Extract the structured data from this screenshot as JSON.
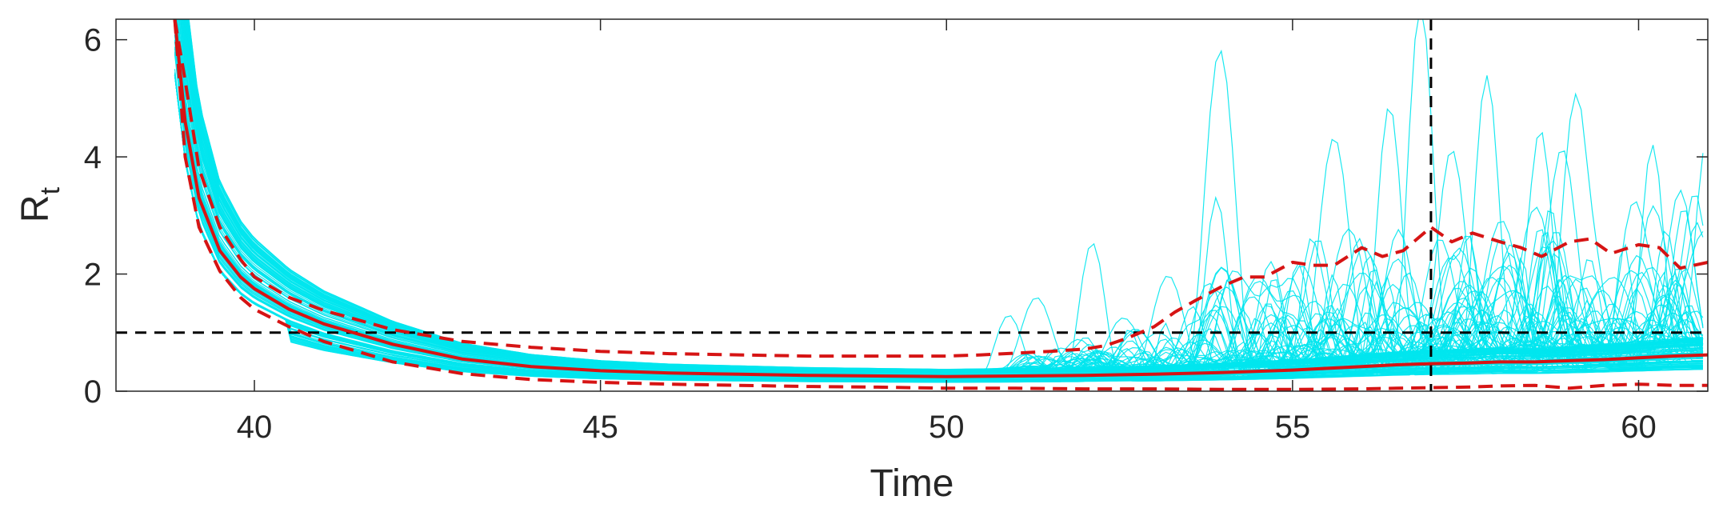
{
  "chart_data": {
    "type": "line",
    "title": "",
    "xlabel": "Time",
    "ylabel_main": "R",
    "ylabel_sub": "t",
    "xlim": [
      38,
      61
    ],
    "ylim": [
      0,
      6.35
    ],
    "xticks": [
      40,
      45,
      50,
      55,
      60
    ],
    "yticks": [
      0,
      2,
      4,
      6
    ],
    "grid": false,
    "reference_lines": {
      "horizontal_y": 1,
      "vertical_x": 57
    },
    "colors": {
      "samples": "#00e5ee",
      "estimate": "#d61414",
      "reference": "#000000",
      "axes": "#262626"
    },
    "ensemble": {
      "count": 120,
      "description_values": "sample trajectories, values in data units",
      "x_start": 38.85,
      "x_end": 61,
      "peak_samples": [
        {
          "x": 53.95,
          "y": 5.85
        },
        {
          "x": 56.85,
          "y": 6.35
        },
        {
          "x": 57.8,
          "y": 5.2
        },
        {
          "x": 59.1,
          "y": 5.1
        },
        {
          "x": 56.4,
          "y": 4.9
        },
        {
          "x": 52.1,
          "y": 2.7
        },
        {
          "x": 53.9,
          "y": 3.45
        },
        {
          "x": 55.6,
          "y": 4.45
        },
        {
          "x": 58.6,
          "y": 4.2
        },
        {
          "x": 60.2,
          "y": 4.0
        },
        {
          "x": 61.0,
          "y": 4.15
        },
        {
          "x": 51.3,
          "y": 1.65
        },
        {
          "x": 50.9,
          "y": 1.5
        },
        {
          "x": 53.2,
          "y": 2.05
        },
        {
          "x": 57.3,
          "y": 3.9
        },
        {
          "x": 58.9,
          "y": 3.6
        },
        {
          "x": 60.6,
          "y": 3.1
        }
      ]
    },
    "series": [
      {
        "role": "median",
        "style": "solid",
        "x": [
          38.85,
          39.0,
          39.2,
          39.5,
          39.8,
          40.0,
          40.5,
          41.0,
          42.0,
          43.0,
          44.0,
          45.0,
          46.0,
          47.0,
          48.0,
          49.0,
          50.0,
          51.0,
          52.0,
          53.0,
          54.0,
          55.0,
          56.0,
          56.5,
          57.0,
          57.5,
          58.0,
          58.5,
          59.0,
          59.5,
          60.0,
          60.5,
          61.0
        ],
        "y": [
          6.35,
          4.6,
          3.3,
          2.4,
          1.95,
          1.75,
          1.4,
          1.15,
          0.8,
          0.55,
          0.42,
          0.35,
          0.31,
          0.29,
          0.27,
          0.26,
          0.25,
          0.26,
          0.27,
          0.29,
          0.32,
          0.36,
          0.42,
          0.45,
          0.47,
          0.48,
          0.5,
          0.5,
          0.52,
          0.54,
          0.57,
          0.6,
          0.62
        ]
      },
      {
        "role": "upper-bound",
        "style": "dashed",
        "x": [
          38.85,
          39.0,
          39.2,
          39.5,
          39.8,
          40.0,
          40.5,
          41.0,
          42.0,
          43.0,
          44.0,
          45.0,
          46.0,
          47.0,
          48.0,
          49.0,
          50.0,
          50.5,
          51.0,
          51.5,
          52.0,
          52.3,
          52.6,
          53.0,
          53.3,
          53.6,
          54.0,
          54.3,
          54.6,
          55.0,
          55.3,
          55.6,
          56.0,
          56.3,
          56.6,
          57.0,
          57.3,
          57.6,
          58.0,
          58.3,
          58.6,
          59.0,
          59.3,
          59.6,
          60.0,
          60.3,
          60.6,
          61.0
        ],
        "y": [
          6.35,
          5.3,
          3.8,
          2.8,
          2.25,
          1.95,
          1.6,
          1.38,
          1.05,
          0.85,
          0.75,
          0.68,
          0.64,
          0.62,
          0.6,
          0.6,
          0.6,
          0.62,
          0.65,
          0.68,
          0.72,
          0.78,
          0.9,
          1.1,
          1.35,
          1.55,
          1.8,
          1.95,
          1.95,
          2.2,
          2.15,
          2.15,
          2.45,
          2.3,
          2.4,
          2.8,
          2.55,
          2.7,
          2.55,
          2.45,
          2.3,
          2.55,
          2.6,
          2.35,
          2.5,
          2.45,
          2.1,
          2.2
        ]
      },
      {
        "role": "lower-bound",
        "style": "dashed",
        "x": [
          38.85,
          39.0,
          39.2,
          39.5,
          39.8,
          40.0,
          40.5,
          41.0,
          42.0,
          43.0,
          44.0,
          45.0,
          46.0,
          47.0,
          48.0,
          49.0,
          50.0,
          51.0,
          52.0,
          53.0,
          54.0,
          55.0,
          56.0,
          56.5,
          57.0,
          57.5,
          58.0,
          58.5,
          59.0,
          59.5,
          60.0,
          60.5,
          61.0
        ],
        "y": [
          6.35,
          4.0,
          2.8,
          2.05,
          1.6,
          1.4,
          1.1,
          0.85,
          0.5,
          0.3,
          0.2,
          0.15,
          0.12,
          0.1,
          0.08,
          0.07,
          0.05,
          0.05,
          0.04,
          0.04,
          0.03,
          0.03,
          0.04,
          0.05,
          0.06,
          0.07,
          0.09,
          0.1,
          0.05,
          0.1,
          0.12,
          0.1,
          0.1
        ]
      }
    ]
  }
}
